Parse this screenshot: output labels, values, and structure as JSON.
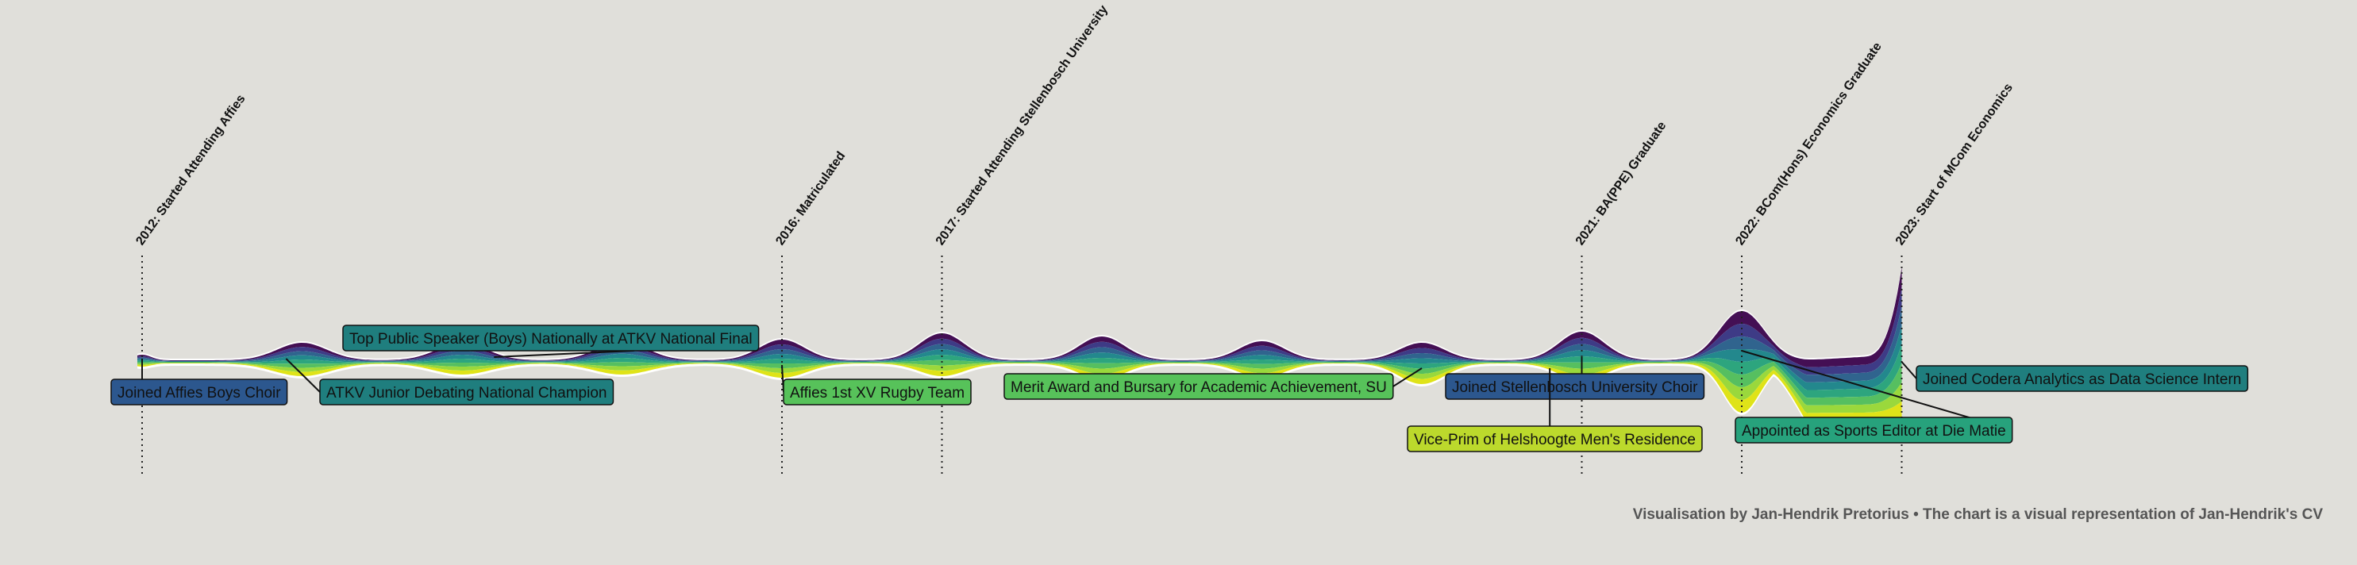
{
  "chart_data": {
    "type": "area",
    "subtype": "streamgraph",
    "title": "",
    "x_range": [
      2011.95,
      2023.75
    ],
    "axis": {
      "shown": false,
      "grid": false
    },
    "colors": {
      "background": "#e0dfda",
      "streams": [
        "#440f54",
        "#3e3b86",
        "#30648e",
        "#23888d",
        "#2da57e",
        "#56bf60",
        "#9ad83c",
        "#dfe318"
      ],
      "box_colors": {
        "blue": "#2c578e",
        "teal": "#1f7e7e",
        "green": "#57c25a",
        "lime": "#bcd92c",
        "sea": "#27a27c"
      }
    },
    "milestones": [
      {
        "year": 2012.0,
        "label": "2012: Started Attending Affies"
      },
      {
        "year": 2016.0,
        "label": "2016: Matriculated"
      },
      {
        "year": 2017.0,
        "label": "2017: Started Attending Stellenbosch University"
      },
      {
        "year": 2021.0,
        "label": "2021: BA(PPE) Graduate"
      },
      {
        "year": 2022.0,
        "label": "2022: BCom(Hons) Economics Graduate"
      },
      {
        "year": 2023.0,
        "label": "2023: Start of MCom Economics"
      }
    ],
    "series": [
      {
        "name": "Top Public Speaker (Boys) Nationally at ATKV National Final",
        "start": 2012.5,
        "end": 2016.0,
        "color": "teal",
        "anchor_year": 2014.2,
        "side": "above"
      },
      {
        "name": "Joined Affies Boys Choir",
        "start": 2012.0,
        "end": 2016.0,
        "color": "blue",
        "anchor_year": 2012.0,
        "side": "below"
      },
      {
        "name": "ATKV Junior Debating National Champion",
        "start": 2012.6,
        "end": 2016.0,
        "color": "teal",
        "anchor_year": 2012.9,
        "side": "below"
      },
      {
        "name": "Affies 1st XV Rugby Team",
        "start": 2015.0,
        "end": 2016.0,
        "color": "green",
        "anchor_year": 2016.0,
        "side": "below"
      },
      {
        "name": "Merit Award and Bursary for Academic Achievement, SU",
        "start": 2017.0,
        "end": 2021.2,
        "color": "green",
        "anchor_year": 2020.0,
        "side": "below"
      },
      {
        "name": "Joined Stellenbosch University Choir",
        "start": 2017.4,
        "end": 2022.0,
        "color": "blue",
        "anchor_year": 2021.0,
        "side": "below"
      },
      {
        "name": "Vice-Prim of Helshoogte Men's Residence",
        "start": 2020.0,
        "end": 2021.0,
        "color": "lime",
        "anchor_year": 2020.8,
        "side": "below"
      },
      {
        "name": "Appointed as Sports Editor at Die Matie",
        "start": 2021.5,
        "end": 2023.0,
        "color": "sea",
        "anchor_year": 2022.0,
        "side": "below"
      },
      {
        "name": "Joined Codera Analytics as Data Science Intern",
        "start": 2023.0,
        "end": 2023.5,
        "color": "teal",
        "anchor_year": 2023.0,
        "side": "right"
      }
    ],
    "caption": "Visualisation by Jan-Hendrik Pretorius  •  The chart is a visual representation of Jan-Hendrik's CV"
  }
}
